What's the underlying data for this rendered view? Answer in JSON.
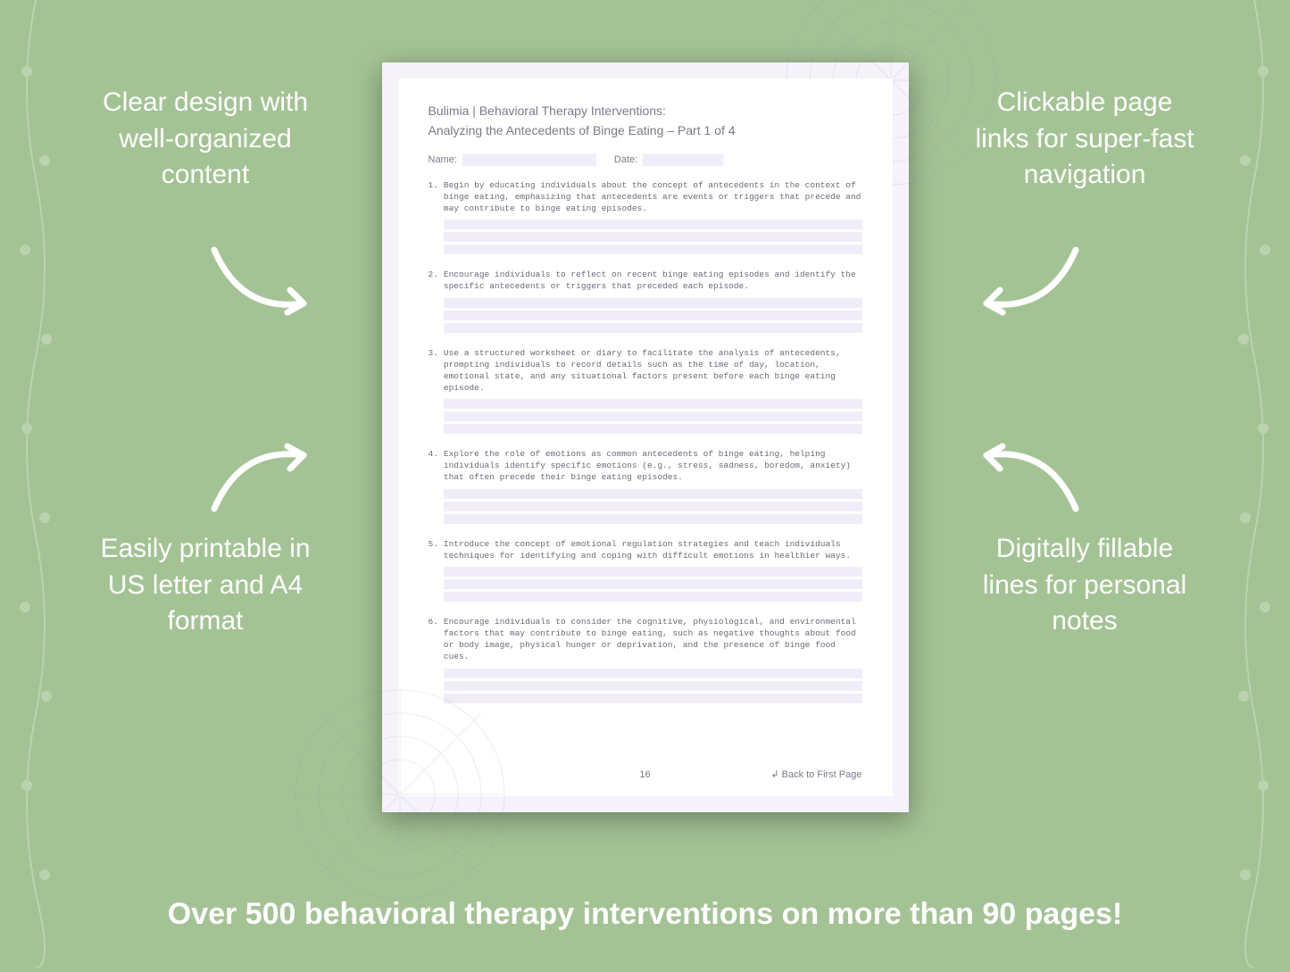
{
  "background_color": "#a4c395",
  "text_color": "#ffffff",
  "callouts": {
    "top_left": "Clear design with well-organized content",
    "top_right": "Clickable page links for super-fast navigation",
    "bottom_left": "Easily printable in US letter and A4 format",
    "bottom_right": "Digitally fillable lines for personal notes"
  },
  "bottom_banner": "Over 500 behavioral therapy interventions on more than 90 pages!",
  "document": {
    "page_bg": "#f5f2fa",
    "inner_bg": "#ffffff",
    "line_fill_color": "#f1edf8",
    "title": "Bulimia | Behavioral Therapy Interventions:",
    "subtitle": "Analyzing the Antecedents of Binge Eating – Part 1 of 4",
    "name_label": "Name:",
    "date_label": "Date:",
    "items": [
      {
        "n": "1.",
        "text": "Begin by educating individuals about the concept of antecedents in the context of binge eating, emphasizing that antecedents are events or triggers that precede and may contribute to binge eating episodes."
      },
      {
        "n": "2.",
        "text": "Encourage individuals to reflect on recent binge eating episodes and identify the specific antecedents or triggers that preceded each episode."
      },
      {
        "n": "3.",
        "text": "Use a structured worksheet or diary to facilitate the analysis of antecedents, prompting individuals to record details such as the time of day, location, emotional state, and any situational factors present before each binge eating episode."
      },
      {
        "n": "4.",
        "text": "Explore the role of emotions as common antecedents of binge eating, helping individuals identify specific emotions (e.g., stress, sadness, boredom, anxiety) that often precede their binge eating episodes."
      },
      {
        "n": "5.",
        "text": "Introduce the concept of emotional regulation strategies and teach individuals techniques for identifying and coping with difficult emotions in healthier ways."
      },
      {
        "n": "6.",
        "text": "Encourage individuals to consider the cognitive, physiological, and environmental factors that may contribute to binge eating, such as negative thoughts about food or body image, physical hunger or deprivation, and the presence of binge food cues."
      }
    ],
    "page_number": "16",
    "back_link": "↲ Back to First Page"
  }
}
